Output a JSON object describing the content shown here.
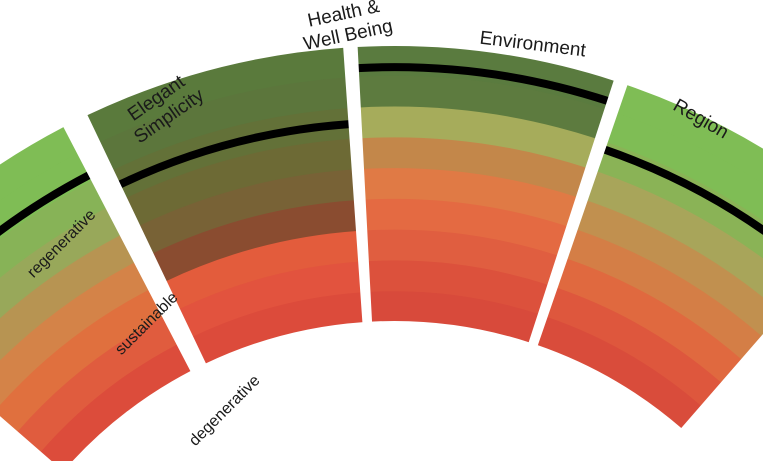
{
  "diagram": {
    "segments": [
      {
        "title_lines": [
          "Elegant",
          "Simplicity"
        ],
        "band_colors": [
          "#7fbd55",
          "#7fbd55",
          "#87b357",
          "#98a85a",
          "#b79452",
          "#d48348",
          "#e0703e",
          "#e05c3e",
          "#dc4c3b"
        ],
        "marker_level": 0.2
      },
      {
        "title_lines": [
          "Health &",
          "Well Being"
        ],
        "band_colors": [
          "#5a7a3c",
          "#5c763c",
          "#637138",
          "#6d6a35",
          "#786236",
          "#8a4c30",
          "#e35c3c",
          "#e2533e",
          "#dc4b3b"
        ],
        "marker_level": 0.28
      },
      {
        "title_lines": [
          "Environment"
        ],
        "band_colors": [
          "#5a7b3f",
          "#5d7b3f",
          "#a6ac5b",
          "#c3874a",
          "#e07a45",
          "#e46a42",
          "#e05e40",
          "#dc513c",
          "#d84a3b"
        ],
        "marker_level": 0.08
      },
      {
        "title_lines": [
          "Region"
        ],
        "band_colors": [
          "#7fbd55",
          "#7fbd55",
          "#8ab356",
          "#a8a55a",
          "#c1904f",
          "#d47e46",
          "#e0693f",
          "#de573d",
          "#d94c3b"
        ],
        "marker_level": 0.25
      }
    ],
    "scale_labels": [
      "regenerative",
      "sustainable",
      "degenerative"
    ],
    "colors": {
      "marker": "#000000",
      "separator": "#ffffff",
      "label": "#1a1a1a"
    }
  }
}
